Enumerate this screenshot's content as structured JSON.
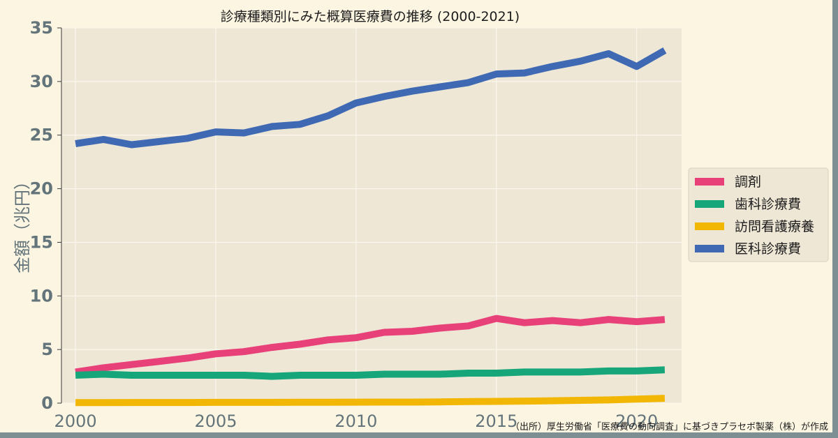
{
  "chart_data": {
    "type": "line",
    "title": "診療種類別にみた概算医療費の推移 (2000-2021)",
    "xlabel": "",
    "ylabel": "金額（兆円）",
    "xlim": [
      1999.5,
      2021.6
    ],
    "ylim": [
      0,
      35
    ],
    "xticks": [
      "2000",
      "2005",
      "2010",
      "2015",
      "2020"
    ],
    "yticks": [
      "0",
      "5",
      "10",
      "15",
      "20",
      "25",
      "30",
      "35"
    ],
    "grid": true,
    "legend_position": "right",
    "x": [
      2000,
      2001,
      2002,
      2003,
      2004,
      2005,
      2006,
      2007,
      2008,
      2009,
      2010,
      2011,
      2012,
      2013,
      2014,
      2015,
      2016,
      2017,
      2018,
      2019,
      2020,
      2021
    ],
    "series": [
      {
        "name": "調剤",
        "color": "#e8417a",
        "values": [
          2.9,
          3.3,
          3.6,
          3.9,
          4.2,
          4.6,
          4.8,
          5.2,
          5.5,
          5.9,
          6.1,
          6.6,
          6.7,
          7.0,
          7.2,
          7.9,
          7.5,
          7.7,
          7.5,
          7.8,
          7.6,
          7.8
        ]
      },
      {
        "name": "歯科診療費",
        "color": "#16a679",
        "values": [
          2.6,
          2.7,
          2.6,
          2.6,
          2.6,
          2.6,
          2.6,
          2.5,
          2.6,
          2.6,
          2.6,
          2.7,
          2.7,
          2.7,
          2.8,
          2.8,
          2.9,
          2.9,
          2.9,
          3.0,
          3.0,
          3.1
        ]
      },
      {
        "name": "訪問看護療養",
        "color": "#f2b705",
        "values": [
          0.05,
          0.05,
          0.06,
          0.06,
          0.06,
          0.07,
          0.07,
          0.07,
          0.08,
          0.08,
          0.09,
          0.1,
          0.1,
          0.12,
          0.14,
          0.16,
          0.19,
          0.22,
          0.26,
          0.3,
          0.37,
          0.45
        ]
      },
      {
        "name": "医科診療費",
        "color": "#3f6ab3",
        "values": [
          24.2,
          24.6,
          24.1,
          24.4,
          24.7,
          25.3,
          25.2,
          25.8,
          26.0,
          26.8,
          28.0,
          28.6,
          29.1,
          29.5,
          29.9,
          30.7,
          30.8,
          31.4,
          31.9,
          32.6,
          31.4,
          32.9
        ]
      }
    ],
    "source": "（出所）厚生労働省「医療費の動向調査」に基づきプラセボ製薬（株）が作成"
  }
}
